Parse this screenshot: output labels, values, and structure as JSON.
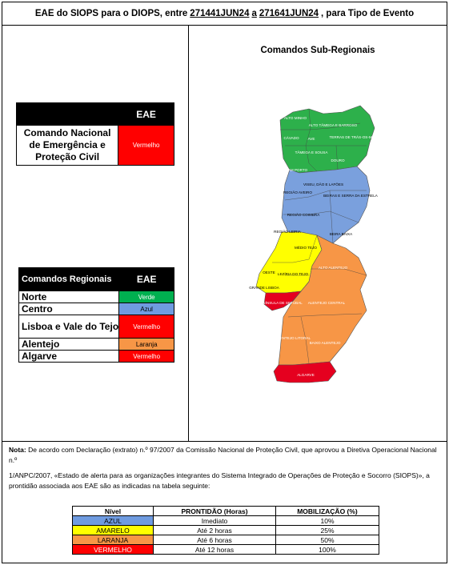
{
  "header": {
    "prefix": "EAE do SIOPS para o DIOPS, entre",
    "period_start": "271441JUN24",
    "connector": "a",
    "period_end": "271641JUN24",
    "suffix": ", para Tipo de Evento"
  },
  "national": {
    "column_header": "EAE",
    "name": "Comando Nacional de Emergência e Proteção Civil",
    "state": "Vermelho",
    "color": "#ff0000"
  },
  "regional": {
    "header_left": "Comandos Regionais",
    "header_right": "EAE",
    "rows": [
      {
        "name": "Norte",
        "state": "Verde",
        "color": "#00b050",
        "text_color": "#ffffff"
      },
      {
        "name": "Centro",
        "state": "Azul",
        "color": "#6f9be0",
        "text_color": "#000000"
      },
      {
        "name": "Lisboa e Vale do Tejo",
        "state": "Vermelho",
        "color": "#ff0000",
        "text_color": "#ffffff"
      },
      {
        "name": "Alentejo",
        "state": "Laranja",
        "color": "#f79646",
        "text_color": "#000000"
      },
      {
        "name": "Algarve",
        "state": "Vermelho",
        "color": "#ff0000",
        "text_color": "#ffffff"
      }
    ]
  },
  "map": {
    "title": "Comandos Sub-Regionais",
    "regions": {
      "alto_minho": "ALTO MINHO",
      "alto_tamega": "ALTO TÂMEGA E BARROSO",
      "cavado": "CÁVADO",
      "ave": "AVE",
      "terras_tras_montes": "TERRAS DE TRÁS-OS-MONTES",
      "tamega_sousa": "TÂMEGA E SOUSA",
      "douro": "DOURO",
      "am_porto": "AM PORTO",
      "viseu_dao": "VISEU, DÃO E LAFÕES",
      "regiao_aveiro": "REGIÃO AVEIRO",
      "beiras_estrela": "BEIRAS E SERRA DA ESTRELA",
      "regiao_coimbra": "REGIÃO COIMBRA",
      "regiao_leiria": "REGIÃO LEIRIA",
      "beira_baixa": "BEIRA BAIXA",
      "medio_tejo": "MÉDIO TEJO",
      "oeste": "OESTE",
      "leziria_tejo": "LEZÍRIA DO TEJO",
      "alto_alentejo": "ALTO ALENTEJO",
      "grande_lisboa": "GRANDE LISBOA",
      "peninsula_setubal": "PENÍNSULA DE SETÚBAL",
      "alentejo_central": "ALENTEJO CENTRAL",
      "alentejo_litoral": "ALENTEJO LITORAL",
      "baixo_alentejo": "BAIXO ALENTEJO",
      "algarve": "ALGARVE"
    },
    "colors": {
      "norte": "#2db04b",
      "centro": "#7aa0dd",
      "lvt": "#ffff00",
      "alentejo": "#f79646",
      "red": "#e5001f"
    }
  },
  "note": {
    "label": "Nota:",
    "line1": "De acordo com Declaração (extrato) n.º 97/2007 da Comissão Nacional de Proteção Civil, que aprovou a Diretiva Operacional Nacional n.º",
    "line2": "1/ANPC/2007, «Estado de alerta para as organizações integrantes do Sistema Integrado de Operações de Proteção e Socorro (SIOPS)», a prontidão associada aos EAE são as indicadas na tabela seguinte:"
  },
  "readiness": {
    "headers": [
      "Nível",
      "PRONTIDÃO (Horas)",
      "MOBILIZAÇÃO (%)"
    ],
    "rows": [
      {
        "level": "AZUL",
        "readiness": "Imediato",
        "mobilization": "10%",
        "color": "#6f9be0",
        "text_color": "#000000"
      },
      {
        "level": "AMARELO",
        "readiness": "Até 2 horas",
        "mobilization": "25%",
        "color": "#ffff00",
        "text_color": "#000000"
      },
      {
        "level": "LARANJA",
        "readiness": "Até 6 horas",
        "mobilization": "50%",
        "color": "#f79646",
        "text_color": "#000000"
      },
      {
        "level": "VERMELHO",
        "readiness": "Até 12 horas",
        "mobilization": "100%",
        "color": "#ff0000",
        "text_color": "#ffffff"
      }
    ]
  }
}
